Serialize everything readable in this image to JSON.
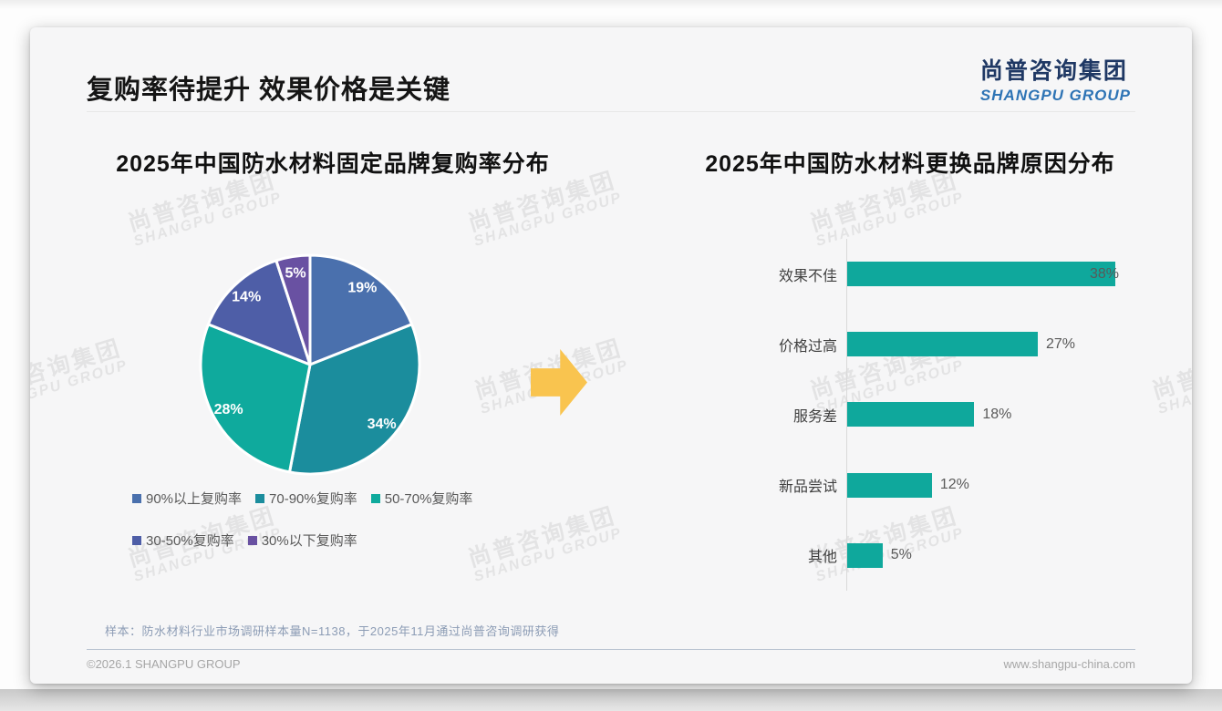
{
  "page": {
    "title": "复购率待提升 效果价格是关键",
    "logo": {
      "cn": "尚普咨询集团",
      "en": "SHANGPU GROUP"
    },
    "watermark": {
      "line1": "尚普咨询集团",
      "line2": "SHANGPU GROUP"
    },
    "note": "样本：防水材料行业市场调研样本量N=1138，于2025年11月通过尚普咨询调研获得",
    "footer_left": "©2026.1 SHANGPU GROUP",
    "footer_right": "www.shangpu-china.com",
    "arrow_color": "#F9C44F"
  },
  "chart_data": [
    {
      "type": "pie",
      "title": "2025年中国防水材料固定品牌复购率分布",
      "categories": [
        "90%以上复购率",
        "70-90%复购率",
        "50-70%复购率",
        "30-50%复购率",
        "30%以下复购率"
      ],
      "values": [
        19,
        34,
        28,
        14,
        5
      ],
      "labels": [
        "19%",
        "34%",
        "28%",
        "14%",
        "5%"
      ],
      "unit": "%",
      "colors": [
        "#4A70AD",
        "#1B8D9D",
        "#0FAA9D",
        "#4E5EA7",
        "#6951A2"
      ],
      "start_angle": "12-oclock",
      "direction": "clockwise",
      "legend_position": "bottom",
      "legend_rows": [
        [
          0,
          1,
          2
        ],
        [
          3,
          4
        ]
      ]
    },
    {
      "type": "bar",
      "orientation": "horizontal",
      "title": "2025年中国防水材料更换品牌原因分布",
      "categories": [
        "效果不佳",
        "价格过高",
        "服务差",
        "新品尝试",
        "其他"
      ],
      "values": [
        38,
        27,
        18,
        12,
        5
      ],
      "labels": [
        "38%",
        "27%",
        "18%",
        "12%",
        "5%"
      ],
      "unit": "%",
      "bar_color": "#0FA89C",
      "xlim": [
        0,
        41
      ],
      "grid": false,
      "value_labels": "end-of-bar"
    }
  ]
}
